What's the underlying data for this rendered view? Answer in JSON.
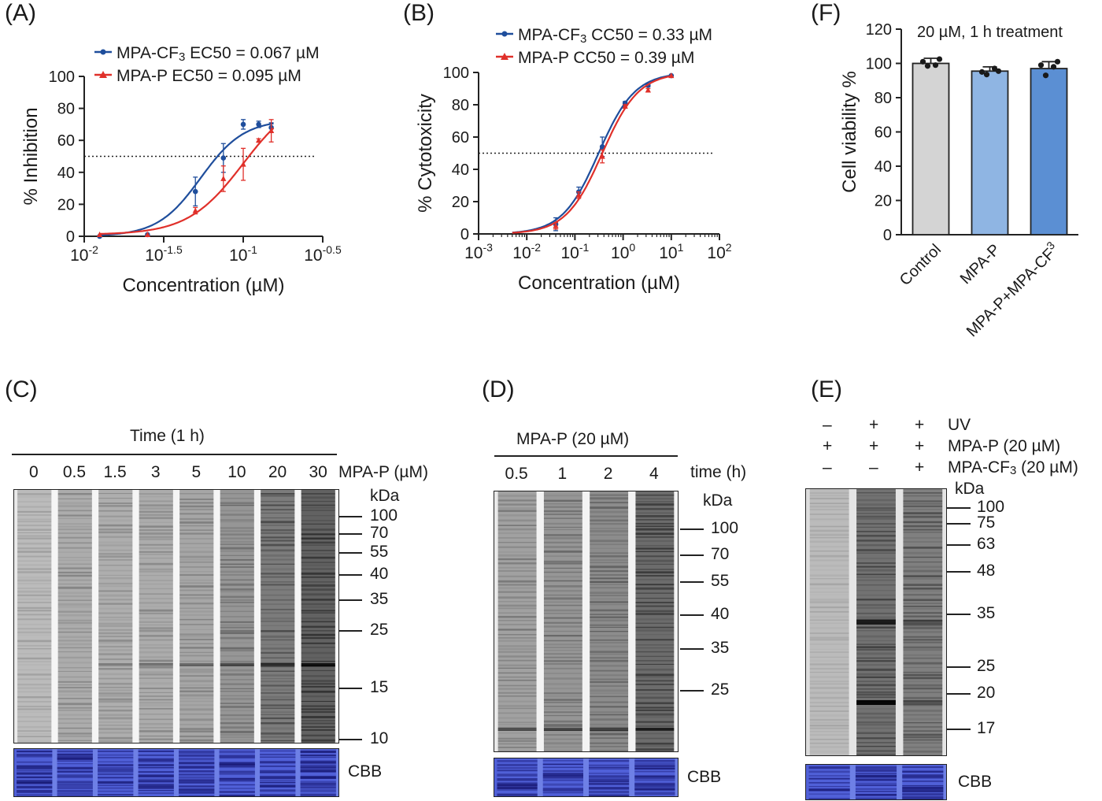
{
  "panelA": {
    "label": "(A)",
    "legend": [
      {
        "name": "MPA-CF",
        "sub": "3",
        "rest": " EC50 = 0.067 µM",
        "color": "#1f4e9c"
      },
      {
        "name": "MPA-P EC50 = 0.095 µM",
        "sub": "",
        "rest": "",
        "color": "#e0302a"
      }
    ],
    "ylabel": "% Inhibition",
    "xlabel": "Concentration (µM)",
    "yticks": [
      "0",
      "20",
      "40",
      "60",
      "80",
      "100"
    ],
    "xticks": [
      {
        "base": "10",
        "exp": "-2"
      },
      {
        "base": "10",
        "exp": "-1.5"
      },
      {
        "base": "10",
        "exp": "-1"
      },
      {
        "base": "10",
        "exp": "-0.5"
      }
    ]
  },
  "panelB": {
    "label": "(B)",
    "legend": [
      {
        "name": "MPA-CF",
        "sub": "3",
        "rest": " CC50 = 0.33 µM",
        "color": "#1f4e9c"
      },
      {
        "name": "MPA-P CC50 = 0.39 µM",
        "sub": "",
        "rest": "",
        "color": "#e0302a"
      }
    ],
    "ylabel": "% Cytotoxicity",
    "xlabel": "Concentration (µM)",
    "yticks": [
      "0",
      "20",
      "40",
      "60",
      "80",
      "100"
    ],
    "xticks": [
      {
        "base": "10",
        "exp": "-3"
      },
      {
        "base": "10",
        "exp": "-2"
      },
      {
        "base": "10",
        "exp": "-1"
      },
      {
        "base": "10",
        "exp": "0"
      },
      {
        "base": "10",
        "exp": "1"
      },
      {
        "base": "10",
        "exp": "2"
      }
    ]
  },
  "panelF": {
    "label": "(F)",
    "title": "20 µM, 1 h treatment",
    "ylabel": "Cell viability %",
    "yticks": [
      "0",
      "20",
      "40",
      "60",
      "80",
      "100",
      "120"
    ],
    "categories": [
      "Control",
      "MPA-P",
      "MPA-P+MPA-CF3"
    ]
  },
  "panelC": {
    "label": "(C)",
    "header": "Time (1 h)",
    "lanes": [
      "0",
      "0.5",
      "1.5",
      "3",
      "5",
      "10",
      "20",
      "30"
    ],
    "lane_unit": "MPA-P (µM)",
    "kda": "kDa",
    "markers": [
      "100",
      "70",
      "55",
      "40",
      "35",
      "25",
      "15",
      "10"
    ],
    "cbb": "CBB"
  },
  "panelD": {
    "label": "(D)",
    "header": "MPA-P (20 µM)",
    "lanes": [
      "0.5",
      "1",
      "2",
      "4"
    ],
    "lane_unit": "time (h)",
    "kda": "kDa",
    "markers": [
      "100",
      "70",
      "55",
      "40",
      "35",
      "25"
    ],
    "cbb": "CBB"
  },
  "panelE": {
    "label": "(E)",
    "rows": [
      {
        "signs": [
          "–",
          "+",
          "+"
        ],
        "label": "UV"
      },
      {
        "signs": [
          "+",
          "+",
          "+"
        ],
        "label": "MPA-P (20 µM)"
      },
      {
        "signs": [
          "–",
          "–",
          "+"
        ],
        "label": "MPA-CF3 (20 µM)"
      }
    ],
    "kda": "kDa",
    "markers": [
      "100",
      "75",
      "63",
      "48",
      "35",
      "25",
      "20",
      "17"
    ],
    "cbb": "CBB"
  },
  "chart_data": [
    {
      "type": "line",
      "panel": "A",
      "xscale": "log",
      "xlim": [
        0.01,
        0.316
      ],
      "ylim": [
        0,
        100
      ],
      "threshold_y": 50,
      "series": [
        {
          "name": "MPA-CF3 EC50 = 0.067 µM",
          "color": "#1f4e9c",
          "x": [
            0.0125,
            0.025,
            0.05,
            0.075,
            0.1,
            0.125,
            0.15
          ],
          "y": [
            0,
            1,
            28,
            49,
            70,
            70,
            68
          ],
          "err": [
            0,
            0,
            9,
            9,
            3,
            2,
            3
          ]
        },
        {
          "name": "MPA-P EC50 = 0.095 µM",
          "color": "#e0302a",
          "x": [
            0.0125,
            0.025,
            0.05,
            0.075,
            0.1,
            0.125,
            0.15
          ],
          "y": [
            1,
            1,
            16,
            36,
            45,
            60,
            66
          ],
          "err": [
            0,
            0,
            2,
            8,
            10,
            1,
            7
          ]
        }
      ]
    },
    {
      "type": "line",
      "panel": "B",
      "xscale": "log",
      "xlim": [
        0.001,
        100
      ],
      "ylim": [
        0,
        100
      ],
      "threshold_y": 50,
      "series": [
        {
          "name": "MPA-CF3 CC50 = 0.33 µM",
          "color": "#1f4e9c",
          "x": [
            0.04,
            0.12,
            0.37,
            1.1,
            3.3,
            10
          ],
          "y": [
            6,
            26,
            54,
            81,
            92,
            98
          ],
          "err": [
            4,
            3,
            6,
            1,
            1,
            0
          ]
        },
        {
          "name": "MPA-P CC50 = 0.39 µM",
          "color": "#e0302a",
          "x": [
            0.04,
            0.12,
            0.37,
            1.1,
            3.3,
            10
          ],
          "y": [
            5,
            24,
            48,
            79,
            89,
            98
          ],
          "err": [
            2,
            2,
            4,
            1,
            1,
            0
          ]
        }
      ]
    },
    {
      "type": "bar",
      "panel": "F",
      "categories": [
        "Control",
        "MPA-P",
        "MPA-P+MPA-CF3"
      ],
      "values": [
        100,
        95.5,
        97
      ],
      "errors": [
        3,
        2.5,
        4
      ],
      "points": [
        [
          101,
          98.5,
          99,
          102.5
        ],
        [
          95,
          93.5,
          97,
          95.5
        ],
        [
          99,
          93,
          98,
          101
        ]
      ],
      "colors": [
        "#d4d4d4",
        "#8fb5e3",
        "#5b8fd3"
      ],
      "ylim": [
        0,
        120
      ]
    }
  ]
}
